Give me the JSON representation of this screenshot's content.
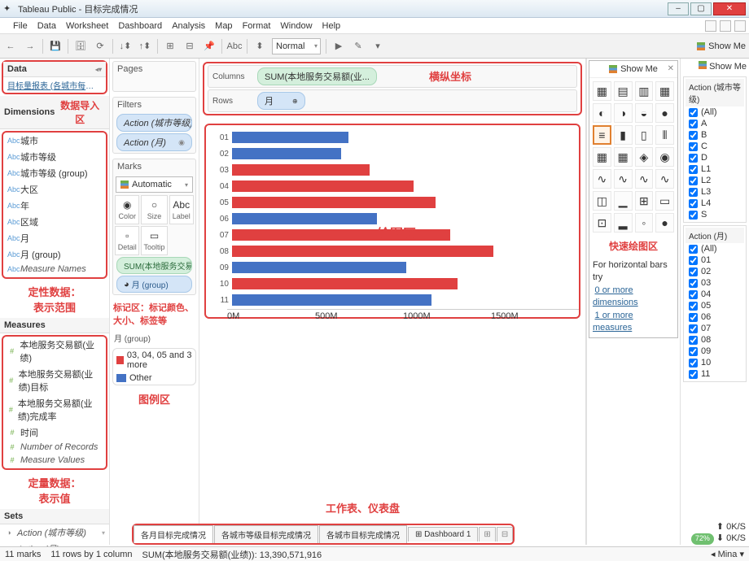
{
  "title": "Tableau Public - 目标完成情况",
  "menu": [
    "File",
    "Data",
    "Worksheet",
    "Dashboard",
    "Analysis",
    "Map",
    "Format",
    "Window",
    "Help"
  ],
  "toolbar": {
    "normal": "Normal",
    "abc": "Abc"
  },
  "showme_label": "Show Me",
  "data": {
    "hdr": "Data",
    "src": "目标量报表 (各城市每月各品...",
    "dim_hdr": "Dimensions",
    "dims": [
      "城市",
      "城市等级",
      "城市等级 (group)",
      "大区",
      "年",
      "区域",
      "月",
      "月 (group)",
      "Measure Names"
    ],
    "meas_hdr": "Measures",
    "meas": [
      "本地服务交易额(业绩)",
      "本地服务交易额(业绩)目标",
      "本地服务交易额(业绩)完成率",
      "时间",
      "Number of Records",
      "Measure Values"
    ],
    "sets_hdr": "Sets",
    "sets": [
      "Action (城市等级)",
      "Action (月)"
    ]
  },
  "annot": {
    "import": "数据导入区",
    "dim": "定性数据：\n表示范围",
    "meas": "定量数据：\n表示值",
    "marks": "标记区：标记颜色、大小、标签等",
    "legend": "图例区",
    "axes": "横纵坐标",
    "chart": "绘图区",
    "showme": "快速绘图区",
    "tabs": "工作表、仪表盘"
  },
  "shelves": {
    "pages": "Pages",
    "filters": "Filters",
    "marks": "Marks",
    "columns": "Columns",
    "rows": "Rows",
    "filter_pills": [
      "Action (城市等级)",
      "Action (月)"
    ],
    "marks_type": "Automatic",
    "marks_cells": [
      [
        "Color",
        "◉"
      ],
      [
        "Size",
        "○"
      ],
      [
        "Label",
        "Abc"
      ],
      [
        "Detail",
        "▫"
      ],
      [
        "Tooltip",
        "▭"
      ]
    ],
    "marks_pills": [
      {
        "t": "meas",
        "l": "SUM(本地服务交易..."
      },
      {
        "t": "dim",
        "l": "月 (group)"
      }
    ],
    "col_pill": "SUM(本地服务交易额(业...",
    "row_pill": "月"
  },
  "legend": {
    "hdr": "月 (group)",
    "items": [
      {
        "c": "#e04040",
        "l": "03, 04, 05 and 3 more"
      },
      {
        "c": "#4472c4",
        "l": "Other"
      }
    ]
  },
  "chart": {
    "rows": [
      {
        "c": "01",
        "w": 32,
        "col": "blue"
      },
      {
        "c": "02",
        "w": 30,
        "col": "blue"
      },
      {
        "c": "03",
        "w": 38,
        "col": "red"
      },
      {
        "c": "04",
        "w": 50,
        "col": "red"
      },
      {
        "c": "05",
        "w": 56,
        "col": "red"
      },
      {
        "c": "06",
        "w": 40,
        "col": "blue"
      },
      {
        "c": "07",
        "w": 60,
        "col": "red"
      },
      {
        "c": "08",
        "w": 72,
        "col": "red"
      },
      {
        "c": "09",
        "w": 48,
        "col": "blue"
      },
      {
        "c": "10",
        "w": 62,
        "col": "red"
      },
      {
        "c": "11",
        "w": 55,
        "col": "blue"
      }
    ],
    "axis": [
      "0M",
      "500M",
      "1000M",
      "1500M"
    ]
  },
  "showme": {
    "note_title": "For horizontal bars try",
    "note1": "0 or more dimensions",
    "note2": "1 or more measures",
    "cells": [
      "▦",
      "▤",
      "▥",
      "▦",
      "◐",
      "◑",
      "◒",
      "●",
      "≡",
      "▮",
      "▯",
      "⫴",
      "▦",
      "▦",
      "◈",
      "◉",
      "∿",
      "∿",
      "∿",
      "∿",
      "◫",
      "▁",
      "⊞",
      "▭",
      "⊡",
      "▂",
      "◦",
      "●"
    ]
  },
  "filters": {
    "a1_hdr": "Action (城市等级)",
    "a1": [
      "(All)",
      "A",
      "B",
      "C",
      "D",
      "L1",
      "L2",
      "L3",
      "L4",
      "S"
    ],
    "a2_hdr": "Action (月)",
    "a2": [
      "(All)",
      "01",
      "02",
      "03",
      "04",
      "05",
      "06",
      "07",
      "08",
      "09",
      "10",
      "11"
    ]
  },
  "tabs": [
    "各月目标完成情况",
    "各城市等级目标完成情况",
    "各城市目标完成情况",
    "Dashboard 1"
  ],
  "status": {
    "marks": "11 marks",
    "rc": "11 rows by 1 column",
    "sum": "SUM(本地服务交易额(业绩)): 13,390,571,916",
    "user": "Mina"
  },
  "speed": {
    "pct": "72%",
    "up": "0K/S",
    "dn": "0K/S"
  }
}
